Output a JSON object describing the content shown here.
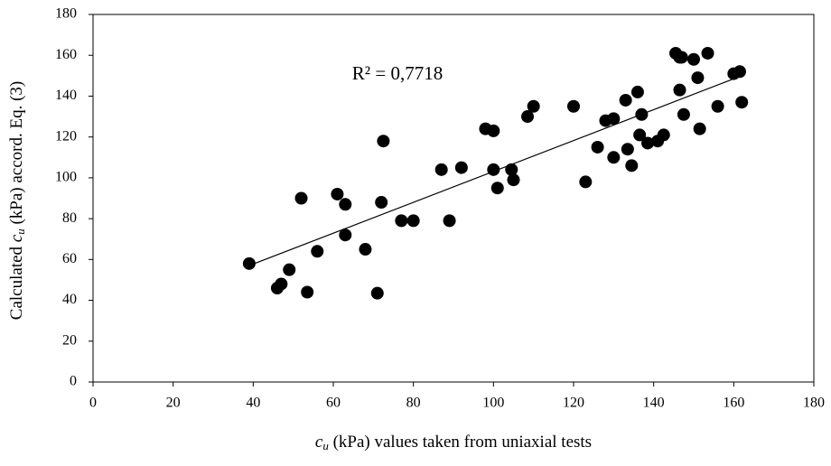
{
  "chart_data": {
    "type": "scatter",
    "xlabel": [
      "c",
      "u",
      " (kPa) values taken from uniaxial tests"
    ],
    "ylabel": [
      "Calculated ",
      "c",
      "u",
      " (kPa) accord. Eq. (3)"
    ],
    "annotation": "R² = 0,7718",
    "xlim": [
      0,
      180
    ],
    "xticks": [
      0,
      20,
      40,
      60,
      80,
      100,
      120,
      140,
      160,
      180
    ],
    "ylim": [
      0,
      180
    ],
    "yticks": [
      0,
      20,
      40,
      60,
      80,
      100,
      120,
      140,
      160,
      180
    ],
    "color": "#000000",
    "series": [
      {
        "x": [
          39,
          46,
          47,
          49,
          52,
          53.5,
          56,
          61,
          63,
          63,
          68,
          71,
          72,
          72.5,
          77,
          80,
          87,
          89,
          92,
          98,
          100,
          100,
          101,
          104.5,
          105,
          108.5,
          110,
          120,
          123,
          126,
          128,
          130,
          130,
          133,
          133.5,
          134.5,
          136,
          136.5,
          137,
          138.5,
          141,
          142.5,
          145.5,
          146.5,
          146.5,
          147,
          147.5,
          150,
          151,
          151.5,
          153.5,
          156,
          160,
          161.5,
          162
        ],
        "values": [
          58,
          46,
          48,
          55,
          90,
          44,
          64,
          92,
          87,
          72,
          65,
          43.5,
          88,
          118,
          79,
          79,
          104,
          79,
          105,
          124,
          123,
          104,
          95,
          104,
          99,
          130,
          135,
          135,
          98,
          115,
          128,
          129,
          110,
          138,
          114,
          106,
          142,
          121,
          131,
          117,
          118,
          121,
          161,
          159,
          143,
          159,
          131,
          158,
          149,
          124,
          161,
          135,
          151,
          152,
          137
        ]
      }
    ],
    "trendline": {
      "x": [
        39,
        162
      ],
      "values": [
        57,
        150
      ]
    }
  }
}
